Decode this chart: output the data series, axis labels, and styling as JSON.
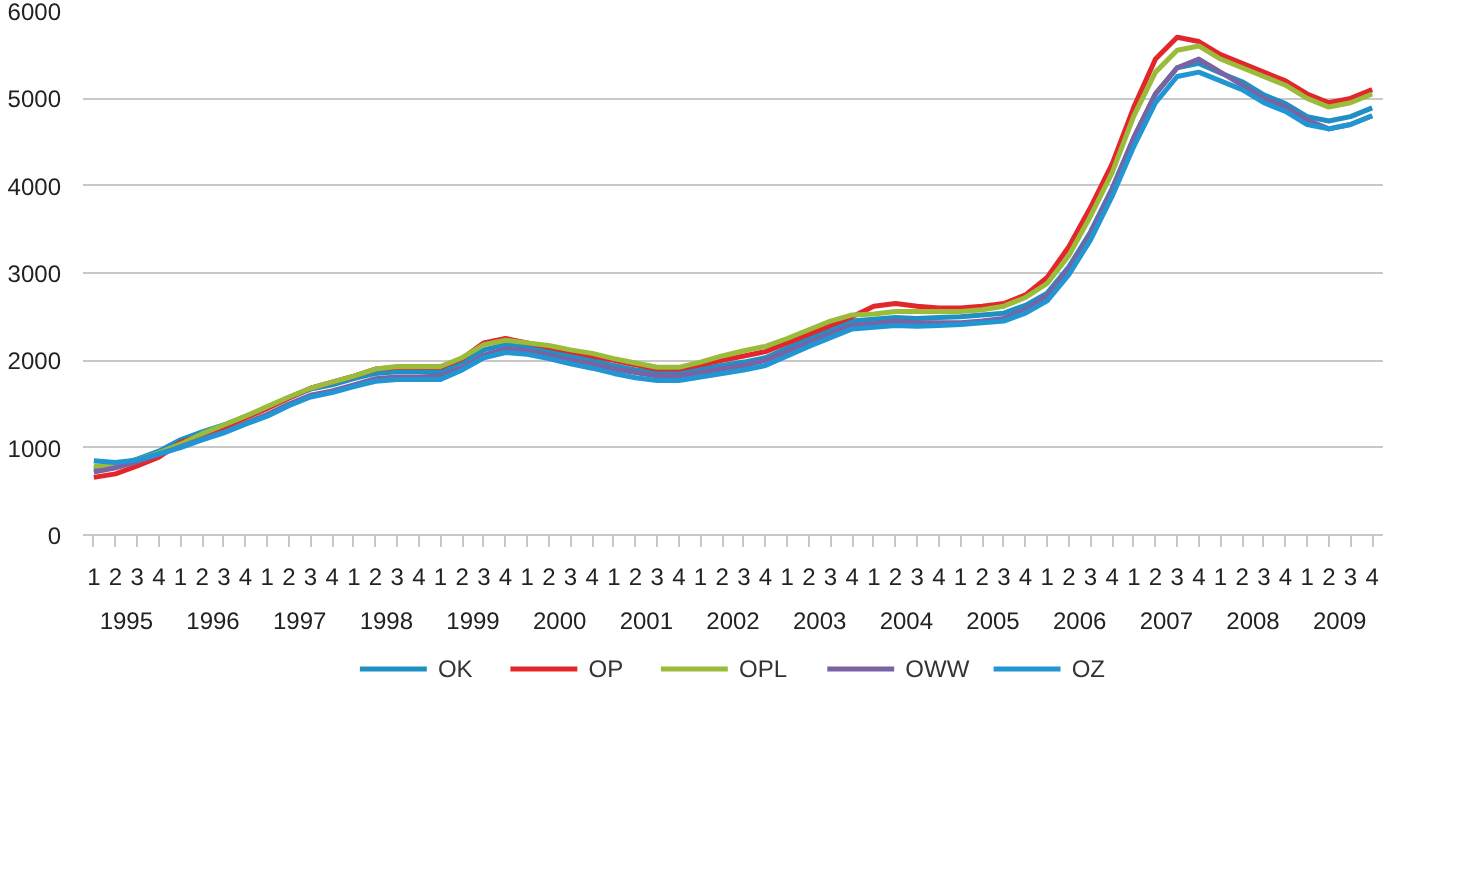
{
  "chart_data": {
    "type": "line",
    "categories": [
      "1",
      "2",
      "3",
      "4",
      "1",
      "2",
      "3",
      "4",
      "1",
      "2",
      "3",
      "4",
      "1",
      "2",
      "3",
      "4",
      "1",
      "2",
      "3",
      "4",
      "1",
      "2",
      "3",
      "4",
      "1",
      "2",
      "3",
      "4",
      "1",
      "2",
      "3",
      "4",
      "1",
      "2",
      "3",
      "4",
      "1",
      "2",
      "3",
      "4",
      "1",
      "2",
      "3",
      "4",
      "1",
      "2",
      "3",
      "4",
      "1",
      "2",
      "3",
      "4",
      "1",
      "2",
      "3",
      "4",
      "1",
      "2",
      "3",
      "4"
    ],
    "annotations": [
      "1995",
      "1996",
      "1997",
      "1998",
      "1999",
      "2000",
      "2001",
      "2002",
      "2003",
      "2004",
      "2005",
      "2006",
      "2007",
      "2008",
      "2009"
    ],
    "ylim": [
      0,
      6000
    ],
    "yticks": [
      0,
      1000,
      2000,
      3000,
      4000,
      5000,
      6000
    ],
    "grid": "y",
    "legend": "bottom",
    "marker": "none",
    "line_style": "solid",
    "series": [
      {
        "name": "OK",
        "color": "#1f8fc4",
        "values": [
          760,
          790,
          870,
          960,
          1090,
          1180,
          1260,
          1360,
          1450,
          1570,
          1670,
          1720,
          1790,
          1850,
          1870,
          1870,
          1870,
          1980,
          2120,
          2180,
          2160,
          2110,
          2050,
          2000,
          1940,
          1890,
          1860,
          1860,
          1900,
          1940,
          1980,
          2030,
          2140,
          2250,
          2350,
          2450,
          2470,
          2490,
          2480,
          2490,
          2500,
          2520,
          2540,
          2630,
          2770,
          3070,
          3470,
          3970,
          4550,
          5050,
          5350,
          5400,
          5290,
          5190,
          5040,
          4940,
          4790,
          4740,
          4790,
          4890
        ]
      },
      {
        "name": "OP",
        "color": "#e3262b",
        "values": [
          660,
          700,
          790,
          890,
          1060,
          1140,
          1230,
          1340,
          1450,
          1570,
          1680,
          1750,
          1820,
          1900,
          1920,
          1920,
          1920,
          2020,
          2200,
          2250,
          2200,
          2150,
          2100,
          2050,
          2000,
          1950,
          1900,
          1900,
          1950,
          2000,
          2050,
          2100,
          2200,
          2300,
          2400,
          2500,
          2620,
          2650,
          2620,
          2600,
          2600,
          2620,
          2650,
          2750,
          2950,
          3300,
          3750,
          4250,
          4900,
          5450,
          5700,
          5650,
          5500,
          5400,
          5300,
          5200,
          5050,
          4950,
          5000,
          5100
        ]
      },
      {
        "name": "OPL",
        "color": "#9bbb3b",
        "values": [
          790,
          790,
          860,
          940,
          1040,
          1160,
          1260,
          1360,
          1470,
          1580,
          1680,
          1750,
          1820,
          1900,
          1930,
          1930,
          1930,
          2030,
          2180,
          2230,
          2200,
          2170,
          2120,
          2080,
          2020,
          1970,
          1920,
          1920,
          1980,
          2050,
          2110,
          2160,
          2250,
          2350,
          2450,
          2520,
          2530,
          2560,
          2560,
          2560,
          2560,
          2580,
          2620,
          2720,
          2880,
          3200,
          3650,
          4150,
          4800,
          5300,
          5550,
          5600,
          5450,
          5350,
          5250,
          5150,
          5000,
          4900,
          4950,
          5050
        ]
      },
      {
        "name": "OWW",
        "color": "#7b62a3",
        "values": [
          720,
          770,
          840,
          920,
          1010,
          1100,
          1180,
          1280,
          1380,
          1500,
          1600,
          1650,
          1720,
          1790,
          1810,
          1810,
          1820,
          1920,
          2060,
          2130,
          2110,
          2060,
          2000,
          1960,
          1900,
          1860,
          1820,
          1820,
          1860,
          1900,
          1940,
          2000,
          2100,
          2200,
          2300,
          2400,
          2420,
          2450,
          2430,
          2430,
          2430,
          2450,
          2480,
          2580,
          2740,
          3050,
          3450,
          3950,
          4550,
          5050,
          5350,
          5450,
          5300,
          5150,
          5000,
          4900,
          4750,
          4650,
          4700,
          4800
        ]
      },
      {
        "name": "OZ",
        "color": "#2196d3",
        "values": [
          850,
          830,
          860,
          930,
          1000,
          1090,
          1170,
          1270,
          1360,
          1480,
          1580,
          1630,
          1700,
          1760,
          1780,
          1780,
          1780,
          1890,
          2030,
          2090,
          2070,
          2020,
          1960,
          1910,
          1850,
          1800,
          1770,
          1770,
          1810,
          1850,
          1890,
          1940,
          2050,
          2160,
          2260,
          2360,
          2380,
          2400,
          2390,
          2400,
          2410,
          2430,
          2450,
          2540,
          2680,
          2980,
          3380,
          3880,
          4450,
          4950,
          5250,
          5300,
          5200,
          5100,
          4950,
          4850,
          4700,
          4650,
          4700,
          4800
        ]
      }
    ]
  }
}
